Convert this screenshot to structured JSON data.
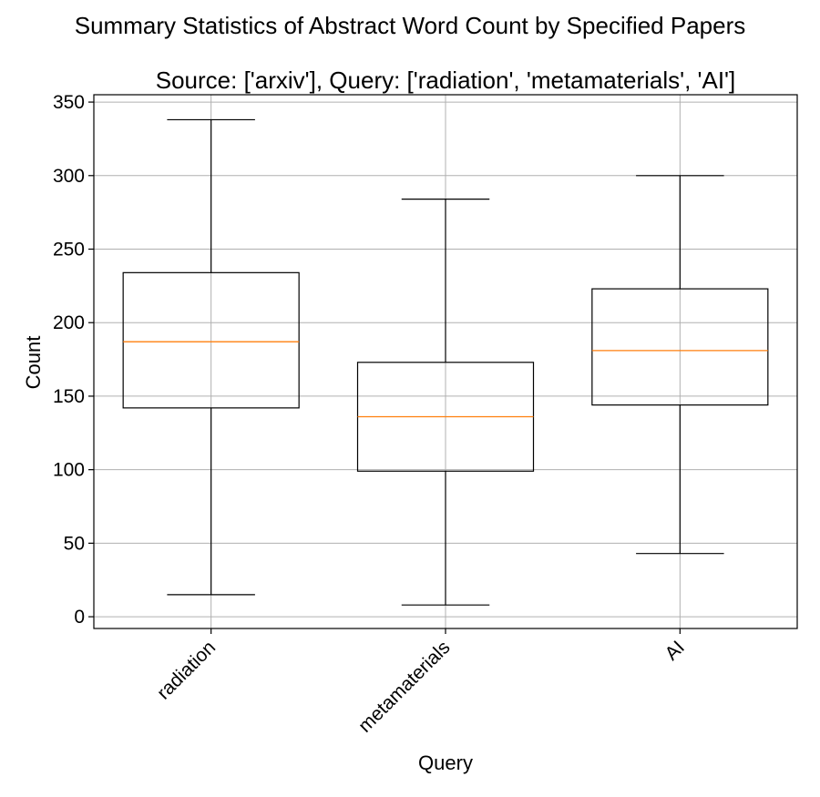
{
  "chart_data": {
    "type": "box",
    "suptitle": "Summary Statistics of Abstract Word Count by Specified Papers",
    "title": "Source: ['arxiv'], Query: ['radiation', 'metamaterials', 'AI']",
    "xlabel": "Query",
    "ylabel": "Count",
    "ylim": [
      -8,
      355
    ],
    "yticks": [
      0,
      50,
      100,
      150,
      200,
      250,
      300,
      350
    ],
    "grid": true,
    "categories": [
      "radiation",
      "metamaterials",
      "AI"
    ],
    "boxes": [
      {
        "category": "radiation",
        "whislo": 15,
        "q1": 142,
        "median": 187,
        "q3": 234,
        "whishi": 338
      },
      {
        "category": "metamaterials",
        "whislo": 8,
        "q1": 99,
        "median": 136,
        "q3": 173,
        "whishi": 284
      },
      {
        "category": "AI",
        "whislo": 43,
        "q1": 144,
        "median": 181,
        "q3": 223,
        "whishi": 300
      }
    ],
    "colors": {
      "box": "#000000",
      "median": "#ff7f0e",
      "grid": "#b0b0b0"
    }
  }
}
